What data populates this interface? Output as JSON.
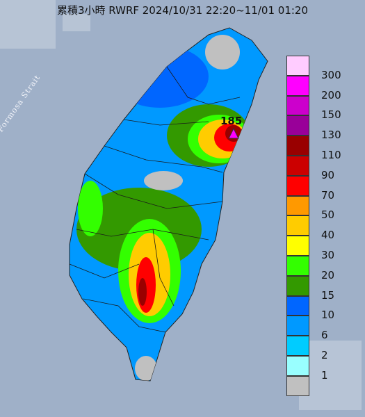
{
  "title": "累積3小時 RWRF 2024/10/31 22:20~11/01 01:20",
  "water_label": "Formosa Strait",
  "max_value": "185",
  "legend": [
    {
      "label": "300",
      "color": "#ffccff"
    },
    {
      "label": "200",
      "color": "#ff00ff"
    },
    {
      "label": "150",
      "color": "#cc00cc"
    },
    {
      "label": "130",
      "color": "#990099"
    },
    {
      "label": "110",
      "color": "#990000"
    },
    {
      "label": "90",
      "color": "#cc0000"
    },
    {
      "label": "70",
      "color": "#ff0000"
    },
    {
      "label": "50",
      "color": "#ff9900"
    },
    {
      "label": "40",
      "color": "#ffcc00"
    },
    {
      "label": "30",
      "color": "#ffff00"
    },
    {
      "label": "20",
      "color": "#33ff00"
    },
    {
      "label": "15",
      "color": "#339900"
    },
    {
      "label": "10",
      "color": "#0066ff"
    },
    {
      "label": "6",
      "color": "#0099ff"
    },
    {
      "label": "2",
      "color": "#00ccff"
    },
    {
      "label": "1",
      "color": "#99ffff"
    },
    {
      "label": "",
      "color": "#c0c0c0"
    }
  ]
}
